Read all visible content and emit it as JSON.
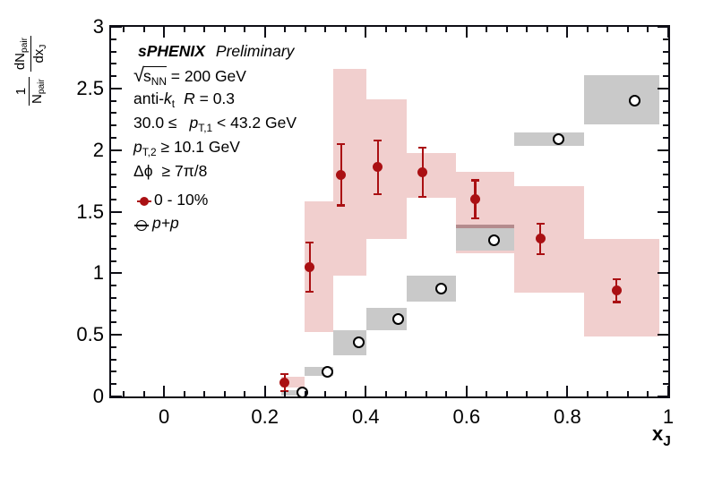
{
  "figure_text": {
    "experiment": "sPHENIX",
    "status": "Preliminary",
    "sqrt_sign": "√",
    "sqrts_symbol": "s",
    "sqrts_sub": "NN",
    "sqrts_value": " = 200 GeV",
    "jet_algo_prefix": "anti-",
    "jet_algo_k": "k",
    "jet_algo_sub": "t",
    "jet_R_symbol": "R",
    "jet_R_value": " = 0.3",
    "pt1_prefix": "30.0 ≤",
    "pt1_symbol": "p",
    "pt1_sub": "T,1",
    "pt1_suffix": " < 43.2 GeV",
    "pt2_symbol": "p",
    "pt2_sub": "T,2",
    "pt2_suffix": " ≥ 10.1 GeV",
    "dphi_symbol": "Δϕ",
    "dphi_value": "≥ 7π/8"
  },
  "legend": {
    "entry1": "0 - 10%",
    "entry2": "p+p"
  },
  "axes": {
    "x_title_main": "x",
    "x_title_sub": "J",
    "y_title": {
      "num1": "1",
      "den1_main": "N",
      "den1_sub": "pair",
      "num2_main": "dN",
      "num2_sub": "pair",
      "den2_main": "dx",
      "den2_sub": "J"
    }
  },
  "chart_data": {
    "type": "scatter",
    "title": "sPHENIX Preliminary",
    "xlabel": "x_J",
    "ylabel": "(1/N_pair) dN_pair/dx_J",
    "xlim": [
      -0.105,
      1.0
    ],
    "ylim": [
      0,
      3
    ],
    "grid": false,
    "legend_position": "top-left-inside",
    "x_tick_labels": [
      "0",
      "0.2",
      "0.4",
      "0.6",
      "0.8",
      "1"
    ],
    "x_tick_values": [
      0,
      0.2,
      0.4,
      0.6,
      0.8,
      1.0
    ],
    "x_minor_step": 0.04,
    "y_tick_labels": [
      "0",
      "0.5",
      "1",
      "1.5",
      "2",
      "2.5",
      "3"
    ],
    "y_tick_values": [
      0,
      0.5,
      1,
      1.5,
      2,
      2.5,
      3
    ],
    "y_minor_step": 0.1,
    "bin_edges": [
      0.233,
      0.279,
      0.335,
      0.402,
      0.482,
      0.579,
      0.694,
      0.833,
      1.0
    ],
    "series": [
      {
        "name": "0 - 10%",
        "marker": "filled-circle",
        "marker_color": "#aa1013",
        "band_color": "#f1cfce",
        "points": [
          {
            "x": 0.239,
            "y": 0.11,
            "ey": 0.07
          },
          {
            "x": 0.289,
            "y": 1.05,
            "ey": 0.2
          },
          {
            "x": 0.351,
            "y": 1.8,
            "ey": 0.25
          },
          {
            "x": 0.424,
            "y": 1.86,
            "ey": 0.22
          },
          {
            "x": 0.513,
            "y": 1.82,
            "ey": 0.2
          },
          {
            "x": 0.617,
            "y": 1.6,
            "ey": 0.155
          },
          {
            "x": 0.746,
            "y": 1.28,
            "ey": 0.125
          },
          {
            "x": 0.897,
            "y": 0.86,
            "ey": 0.095
          }
        ],
        "syst_boxes": [
          [
            0.233,
            0.279,
            0.075,
            0.158
          ],
          [
            0.279,
            0.335,
            0.52,
            1.585
          ],
          [
            0.335,
            0.402,
            0.98,
            2.66
          ],
          [
            0.402,
            0.482,
            1.28,
            2.41
          ],
          [
            0.482,
            0.579,
            1.615,
            1.975
          ],
          [
            0.579,
            0.694,
            1.16,
            1.82
          ],
          [
            0.694,
            0.833,
            0.845,
            1.705
          ],
          [
            0.833,
            0.983,
            0.49,
            1.28
          ]
        ]
      },
      {
        "name": "p+p",
        "marker": "open-circle",
        "marker_color": "#000000",
        "band_color": "#c9c9c9",
        "points": [
          {
            "x": 0.274,
            "y": 0.03,
            "ey": 0
          },
          {
            "x": 0.324,
            "y": 0.2,
            "ey": 0
          },
          {
            "x": 0.387,
            "y": 0.44,
            "ey": 0
          },
          {
            "x": 0.464,
            "y": 0.628,
            "ey": 0
          },
          {
            "x": 0.549,
            "y": 0.875,
            "ey": 0
          },
          {
            "x": 0.654,
            "y": 1.268,
            "ey": 0
          },
          {
            "x": 0.782,
            "y": 2.092,
            "ey": 0
          },
          {
            "x": 0.934,
            "y": 2.404,
            "ey": 0
          }
        ],
        "syst_boxes": [
          [
            0.233,
            0.279,
            0.01,
            0.052
          ],
          [
            0.279,
            0.335,
            0.166,
            0.238
          ],
          [
            0.335,
            0.402,
            0.334,
            0.534
          ],
          [
            0.402,
            0.482,
            0.534,
            0.719
          ],
          [
            0.482,
            0.579,
            0.767,
            0.983
          ],
          [
            0.579,
            0.694,
            1.183,
            1.363
          ],
          [
            0.694,
            0.833,
            2.036,
            2.14
          ],
          [
            0.833,
            0.982,
            2.205,
            2.606
          ]
        ]
      }
    ],
    "overlap_strip": {
      "x": [
        0.579,
        0.694
      ],
      "y": [
        1.363,
        1.392
      ],
      "color": "#b48b8d"
    }
  },
  "style": {
    "accent_red": "#aa1013",
    "band_pink": "#f1cfce",
    "band_gray": "#c9c9c9",
    "axis_color": "#0e0e16"
  }
}
